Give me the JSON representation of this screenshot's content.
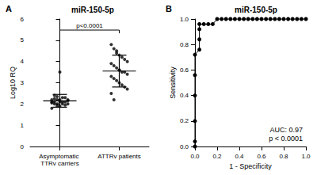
{
  "chart_data": [
    {
      "type": "scatter",
      "panel": "A",
      "title": "miR-150-5p",
      "y_label": "Log10 RQ",
      "categories": [
        "Asymptomatic TTRv carriers",
        "ATTRv patients"
      ],
      "values": [
        [
          2.1,
          2.0,
          2.2,
          1.9,
          2.3,
          2.1,
          2.0,
          2.2,
          2.4,
          1.9,
          2.1,
          2.0,
          2.3,
          2.2,
          1.8,
          2.1,
          2.0,
          2.2,
          2.1,
          1.95,
          2.15,
          2.05,
          2.25,
          2.35,
          3.5
        ],
        [
          4.8,
          4.6,
          4.5,
          4.3,
          4.2,
          4.1,
          4.0,
          3.9,
          3.8,
          3.7,
          3.6,
          3.5,
          3.5,
          3.4,
          3.3,
          3.2,
          3.1,
          3.0,
          2.9,
          2.8,
          2.7,
          2.5,
          2.2,
          4.4,
          3.6
        ]
      ],
      "mean": [
        2.15,
        3.55
      ],
      "error": [
        0.3,
        0.75
      ],
      "annotation": "p<0.0001",
      "color": "#000000",
      "marker": "circle",
      "ylim": [
        0,
        6
      ],
      "yticks": [
        0,
        1,
        2,
        3,
        4,
        5,
        6
      ],
      "grid": false
    },
    {
      "type": "line",
      "panel": "B",
      "title": "miR-150-5p",
      "x_label": "1 - Specificity",
      "y_label": "Sensitivity",
      "x": [
        0,
        0,
        0,
        0,
        0,
        0,
        0.04,
        0.04,
        0.04,
        0.04,
        0.08,
        0.12,
        0.16,
        0.2,
        0.24,
        0.28,
        0.32,
        0.36,
        0.4,
        0.44,
        0.48,
        0.52,
        0.56,
        0.6,
        0.64,
        0.68,
        0.72,
        0.76,
        0.8,
        0.84,
        0.88,
        0.92,
        0.96,
        1.0
      ],
      "values": [
        0,
        0.04,
        0.2,
        0.4,
        0.56,
        0.72,
        0.76,
        0.84,
        0.92,
        0.96,
        0.96,
        0.96,
        0.96,
        1,
        1,
        1,
        1,
        1,
        1,
        1,
        1,
        1,
        1,
        1,
        1,
        1,
        1,
        1,
        1,
        1,
        1,
        1,
        1,
        1
      ],
      "annotations": [
        "AUC: 0.97",
        "p < 0.0001"
      ],
      "color": "#000000",
      "marker": "circle",
      "xlim": [
        0,
        1
      ],
      "xticks": [
        {
          "value": 0,
          "label": "0.0"
        },
        0.2,
        0.4,
        0.6,
        0.8,
        {
          "value": 1,
          "label": "1.0"
        }
      ],
      "ylim": [
        0,
        1
      ],
      "yticks": [
        {
          "value": 0,
          "label": "0.0"
        },
        0.2,
        0.4,
        0.6,
        0.8,
        {
          "value": 1,
          "label": "1.0"
        }
      ],
      "grid": false
    }
  ]
}
